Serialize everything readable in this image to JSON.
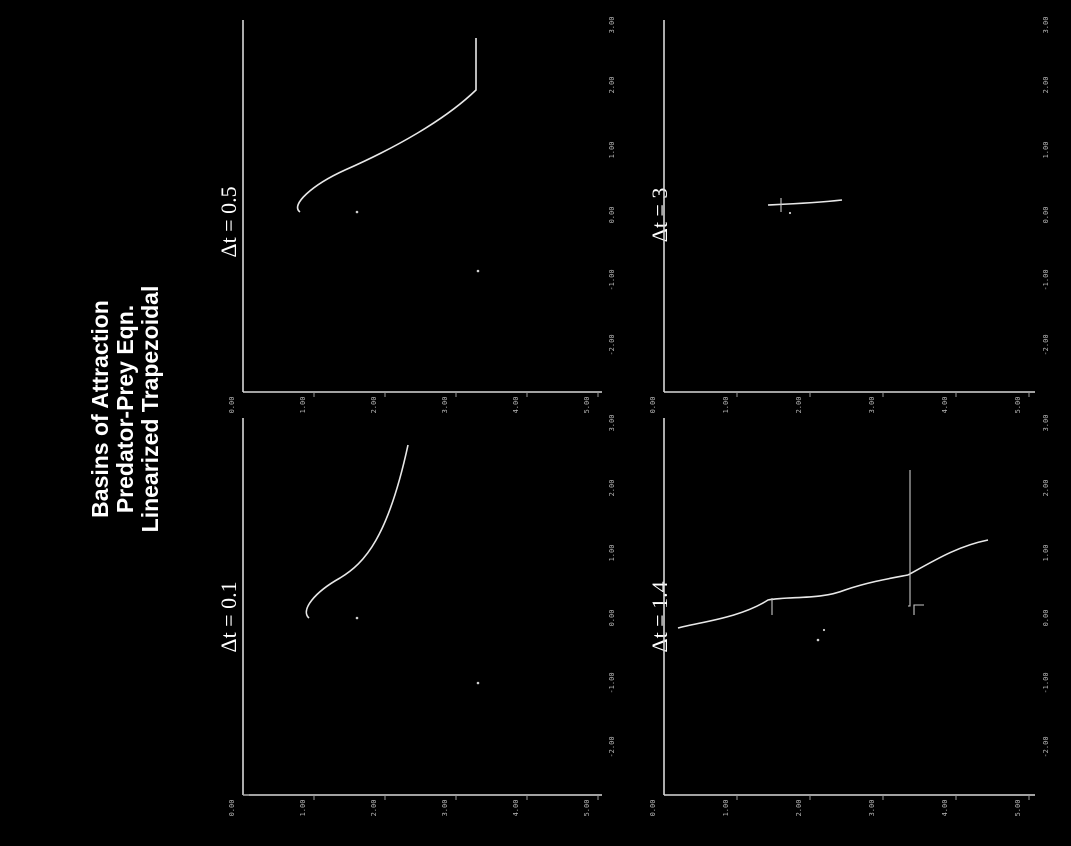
{
  "title": {
    "line1": "Basins of Attraction",
    "line2": "Predator-Prey Eqn.",
    "line3": "Linearized Trapezoidal"
  },
  "panels": [
    {
      "id": "dt-0.1",
      "label": "Δt = 0.1"
    },
    {
      "id": "dt-0.5",
      "label": "Δt = 0.5"
    },
    {
      "id": "dt-1.4",
      "label": "Δt = 1.4"
    },
    {
      "id": "dt-3",
      "label": "Δt = 3"
    }
  ],
  "axis_ticks": {
    "vertical": [
      "0.00",
      "1.00",
      "2.00",
      "3.00",
      "4.00",
      "5.00"
    ],
    "horizontal": [
      "-2.00",
      "-1.00",
      "0.00",
      "1.00",
      "2.00",
      "3.00"
    ]
  },
  "colors": {
    "background": "#000000",
    "foreground": "#ffffff"
  }
}
